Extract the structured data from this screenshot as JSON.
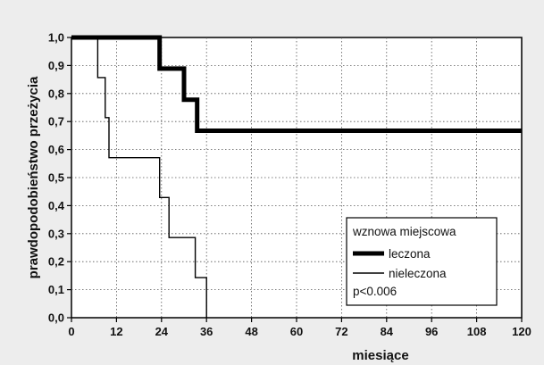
{
  "chart_data": {
    "type": "line",
    "step": true,
    "title": "",
    "xlabel": "miesiące",
    "ylabel": "prawdopodobieństwo przeżycia",
    "xlim": [
      0,
      120
    ],
    "ylim": [
      0,
      1
    ],
    "x_ticks": [
      0,
      12,
      24,
      36,
      48,
      60,
      72,
      84,
      96,
      108,
      120
    ],
    "x_tick_labels": [
      "0",
      "12",
      "24",
      "36",
      "48",
      "60",
      "72",
      "84",
      "96",
      "108",
      "120"
    ],
    "y_ticks": [
      0,
      0.1,
      0.2,
      0.3,
      0.4,
      0.5,
      0.6,
      0.7,
      0.8,
      0.9,
      1.0
    ],
    "y_tick_labels": [
      "0,0",
      "0,1",
      "0,2",
      "0,3",
      "0,4",
      "0,5",
      "0,6",
      "0,7",
      "0,8",
      "0,9",
      "1,0"
    ],
    "grid": true,
    "legend": {
      "title": "wznowa miejscowa",
      "placement": "lower-right",
      "note": "p<0.006"
    },
    "series": [
      {
        "name": "leczona",
        "line": "thick",
        "color": "#000000",
        "points": [
          [
            0,
            1.0
          ],
          [
            23.5,
            1.0
          ],
          [
            23.5,
            0.889
          ],
          [
            30,
            0.889
          ],
          [
            30,
            0.778
          ],
          [
            33.5,
            0.778
          ],
          [
            33.5,
            0.667
          ],
          [
            120,
            0.667
          ]
        ]
      },
      {
        "name": "nieleczona",
        "line": "thin",
        "color": "#000000",
        "points": [
          [
            0,
            1.0
          ],
          [
            7,
            1.0
          ],
          [
            7,
            0.857
          ],
          [
            9,
            0.857
          ],
          [
            9,
            0.714
          ],
          [
            10,
            0.714
          ],
          [
            10,
            0.571
          ],
          [
            23.5,
            0.571
          ],
          [
            23.5,
            0.429
          ],
          [
            26,
            0.429
          ],
          [
            26,
            0.286
          ],
          [
            33,
            0.286
          ],
          [
            33,
            0.143
          ],
          [
            36,
            0.143
          ],
          [
            36,
            0.0
          ]
        ]
      }
    ]
  }
}
